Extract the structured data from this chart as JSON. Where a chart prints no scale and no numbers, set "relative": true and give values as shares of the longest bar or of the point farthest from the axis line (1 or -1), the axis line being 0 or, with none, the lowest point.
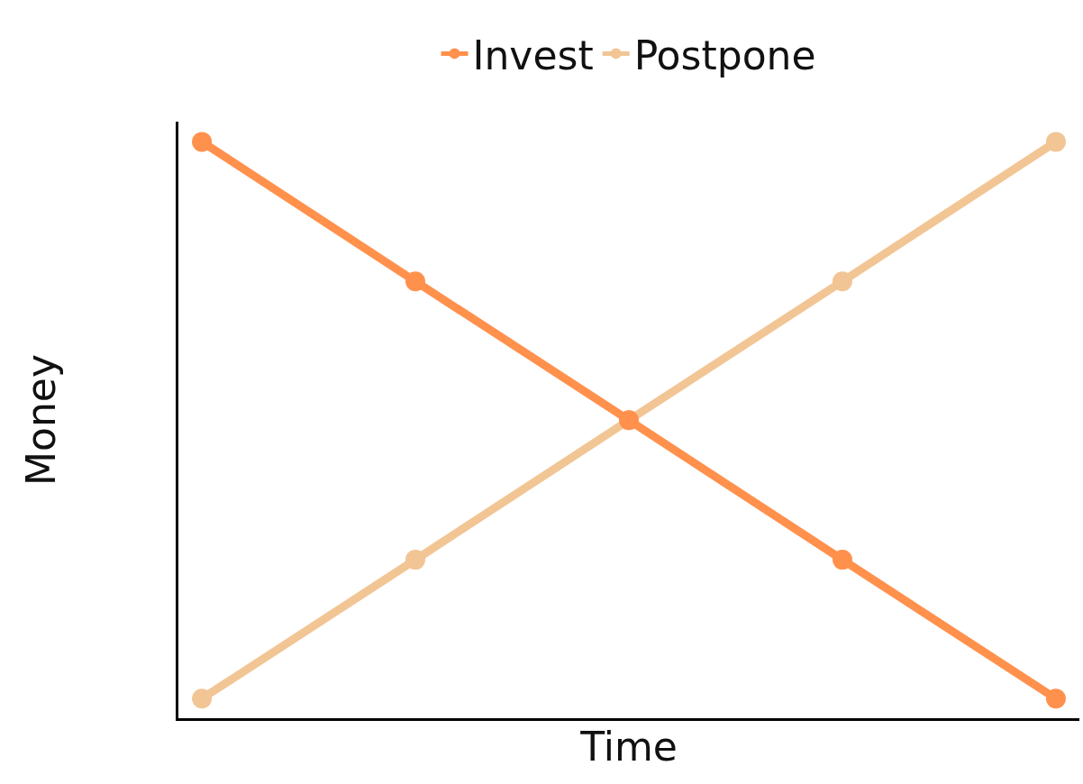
{
  "chart_data": {
    "type": "line",
    "xlabel": "Time",
    "ylabel": "Money",
    "relative": true,
    "categories": [
      null,
      null,
      null,
      null,
      null
    ],
    "series": [
      {
        "name": "Invest",
        "color": "#ff914d",
        "values": [
          1,
          0.758,
          0.517,
          0.275,
          0.034
        ]
      },
      {
        "name": "Postpone",
        "color": "#f2c594",
        "values": [
          0.034,
          0.275,
          0.517,
          0.758,
          1
        ]
      }
    ],
    "legend": "top",
    "marker": "circle",
    "line_style": "solid",
    "grid": false
  }
}
